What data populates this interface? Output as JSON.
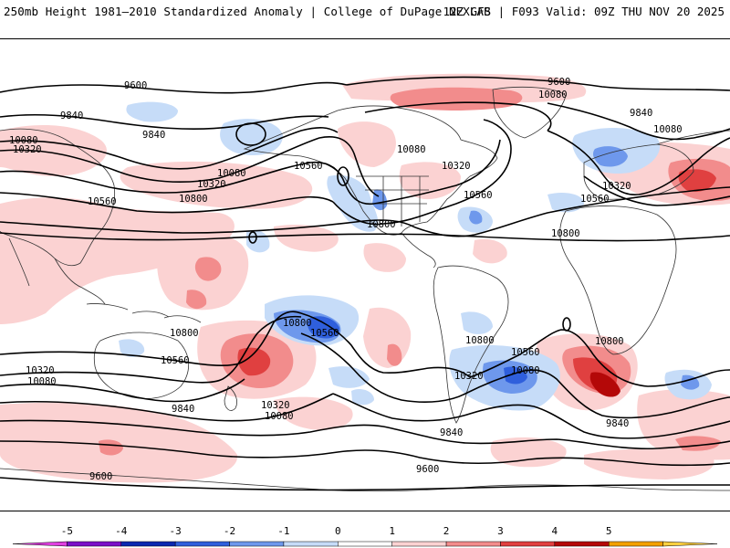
{
  "header": {
    "title": "250mb Height 1981–2010 Standardized Anomaly | College of DuPage NEXLAB",
    "run_info": "12Z GFS | F093 Valid: 09Z THU NOV 20 2025"
  },
  "contour_labels": [
    "9600",
    "9840",
    "10080",
    "10320",
    "10560",
    "10800",
    "9600",
    "9840",
    "10080",
    "10320",
    "10080",
    "10320",
    "10560",
    "10560",
    "10800",
    "9840",
    "10080",
    "10080",
    "10320",
    "10560",
    "10800",
    "10800",
    "10560",
    "10800",
    "10560",
    "10320",
    "10080",
    "9840",
    "10320",
    "10080",
    "10800",
    "10560",
    "10800",
    "10560",
    "10320",
    "10080",
    "10800",
    "9840",
    "9840",
    "9600",
    "9600"
  ],
  "colorbar": {
    "ticks": [
      "-5",
      "-4",
      "-3",
      "-2",
      "-1",
      "0",
      "1",
      "2",
      "3",
      "4",
      "5"
    ],
    "colors": [
      "#e040e0",
      "#7a10c8",
      "#0a28b0",
      "#2f5fdc",
      "#6e98ec",
      "#c6dcf8",
      "#ffffff",
      "#fbd2d2",
      "#f28c8c",
      "#e04040",
      "#b40808",
      "#f2a000",
      "#ffd040"
    ]
  }
}
